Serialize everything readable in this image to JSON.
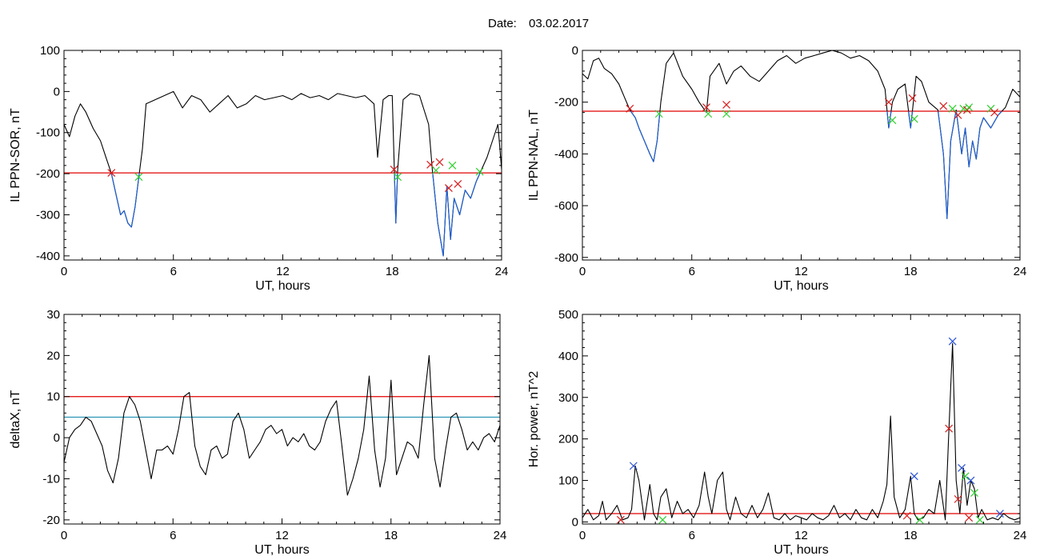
{
  "header": {
    "date_label": "Date:",
    "date_value": "03.02.2017"
  },
  "colors": {
    "line": "#000000",
    "highlight": "#1f5fd0",
    "threshold_red": "#e00000",
    "threshold_teal": "#1f8fb0",
    "cross_red": "#d81b1b",
    "cross_green": "#2fd02f",
    "cross_blue": "#2850d8"
  },
  "chart_data": [
    {
      "id": "sor",
      "type": "line",
      "title": "",
      "xlabel": "UT, hours",
      "ylabel": "IL PPN-SOR, nT",
      "xlim": [
        0,
        24
      ],
      "ylim": [
        -410,
        100
      ],
      "xticks": [
        0,
        6,
        12,
        18,
        24
      ],
      "yticks": [
        100,
        0,
        -100,
        -200,
        -300,
        -400
      ],
      "thresholds": [
        {
          "y": -198,
          "color": "red"
        }
      ],
      "series": [
        {
          "x": [
            0,
            0.3,
            0.6,
            0.9,
            1.2,
            1.6,
            2.0,
            2.3,
            2.6,
            2.9,
            3.1,
            3.3,
            3.5,
            3.7,
            3.9,
            4.1,
            4.3,
            4.5,
            5.0,
            5.5,
            6.0,
            6.5,
            7.0,
            7.5,
            8.0,
            8.5,
            9.0,
            9.5,
            10,
            10.5,
            11,
            11.5,
            12,
            12.5,
            13,
            13.5,
            14,
            14.5,
            15,
            15.5,
            16,
            16.5,
            17,
            17.2,
            17.5,
            17.8,
            18.0,
            18.2,
            18.3,
            18.6,
            19.0,
            19.5,
            20.0,
            20.2,
            20.5,
            20.8,
            21.0,
            21.2,
            21.4,
            21.7,
            22.0,
            22.3,
            22.6,
            22.9,
            23.2,
            23.5,
            23.8,
            24
          ],
          "y": [
            -80,
            -110,
            -60,
            -30,
            -50,
            -90,
            -120,
            -160,
            -200,
            -260,
            -300,
            -290,
            -320,
            -330,
            -280,
            -210,
            -140,
            -30,
            -20,
            -10,
            0,
            -40,
            -10,
            -20,
            -50,
            -30,
            -10,
            -40,
            -30,
            -10,
            -20,
            -15,
            -10,
            -20,
            -5,
            -15,
            -10,
            -20,
            -5,
            -10,
            -15,
            -10,
            -30,
            -160,
            -20,
            -10,
            -10,
            -320,
            -190,
            -20,
            -5,
            -10,
            -80,
            -190,
            -320,
            -400,
            -230,
            -360,
            -260,
            -300,
            -240,
            -260,
            -220,
            -190,
            -160,
            -120,
            -80,
            -190
          ],
          "highlight_below": -198
        }
      ],
      "markers": [
        {
          "x": 2.6,
          "y": -198,
          "color": "red"
        },
        {
          "x": 4.1,
          "y": -208,
          "color": "green"
        },
        {
          "x": 18.1,
          "y": -190,
          "color": "red"
        },
        {
          "x": 18.3,
          "y": -208,
          "color": "green"
        },
        {
          "x": 20.1,
          "y": -178,
          "color": "red"
        },
        {
          "x": 20.6,
          "y": -172,
          "color": "red"
        },
        {
          "x": 20.4,
          "y": -192,
          "color": "green"
        },
        {
          "x": 21.1,
          "y": -235,
          "color": "red"
        },
        {
          "x": 21.3,
          "y": -180,
          "color": "green"
        },
        {
          "x": 21.6,
          "y": -225,
          "color": "red"
        },
        {
          "x": 22.8,
          "y": -195,
          "color": "green"
        }
      ]
    },
    {
      "id": "nal",
      "type": "line",
      "title": "",
      "xlabel": "UT, hours",
      "ylabel": "IL PPN-NAL, nT",
      "xlim": [
        0,
        24
      ],
      "ylim": [
        -810,
        0
      ],
      "xticks": [
        0,
        6,
        12,
        18,
        24
      ],
      "yticks": [
        0,
        -200,
        -400,
        -600,
        -800
      ],
      "thresholds": [
        {
          "y": -235,
          "color": "red"
        }
      ],
      "series": [
        {
          "x": [
            0,
            0.3,
            0.6,
            0.9,
            1.2,
            1.6,
            2.0,
            2.3,
            2.6,
            2.9,
            3.1,
            3.4,
            3.7,
            3.9,
            4.1,
            4.3,
            4.6,
            5.0,
            5.5,
            6.0,
            6.4,
            6.8,
            7.0,
            7.5,
            7.9,
            8.3,
            8.7,
            9.2,
            9.7,
            10.2,
            10.7,
            11.2,
            11.7,
            12.2,
            12.7,
            13.2,
            13.7,
            14.2,
            14.7,
            15.2,
            15.7,
            16.2,
            16.6,
            16.8,
            17.0,
            17.3,
            17.7,
            18.0,
            18.3,
            18.6,
            19.0,
            19.5,
            19.8,
            20.0,
            20.2,
            20.5,
            20.8,
            21.0,
            21.2,
            21.4,
            21.6,
            21.8,
            22.0,
            22.4,
            22.8,
            23.2,
            23.6,
            24
          ],
          "y": [
            -90,
            -110,
            -40,
            -30,
            -70,
            -90,
            -130,
            -180,
            -230,
            -260,
            -300,
            -350,
            -400,
            -430,
            -350,
            -200,
            -50,
            -10,
            -100,
            -150,
            -200,
            -240,
            -100,
            -50,
            -130,
            -80,
            -60,
            -100,
            -120,
            -80,
            -40,
            -20,
            -50,
            -30,
            -20,
            -10,
            0,
            -10,
            -30,
            -20,
            -40,
            -80,
            -150,
            -300,
            -200,
            -150,
            -130,
            -300,
            -100,
            -120,
            -200,
            -230,
            -400,
            -650,
            -350,
            -230,
            -400,
            -300,
            -450,
            -350,
            -420,
            -300,
            -260,
            -300,
            -250,
            -220,
            -150,
            -180
          ],
          "highlight_below": -235
        }
      ],
      "markers": [
        {
          "x": 2.6,
          "y": -225,
          "color": "red"
        },
        {
          "x": 4.2,
          "y": -245,
          "color": "green"
        },
        {
          "x": 6.8,
          "y": -220,
          "color": "red"
        },
        {
          "x": 6.9,
          "y": -245,
          "color": "green"
        },
        {
          "x": 7.9,
          "y": -210,
          "color": "red"
        },
        {
          "x": 7.9,
          "y": -245,
          "color": "green"
        },
        {
          "x": 16.8,
          "y": -200,
          "color": "red"
        },
        {
          "x": 17.0,
          "y": -270,
          "color": "green"
        },
        {
          "x": 18.1,
          "y": -185,
          "color": "red"
        },
        {
          "x": 18.2,
          "y": -265,
          "color": "green"
        },
        {
          "x": 19.8,
          "y": -215,
          "color": "red"
        },
        {
          "x": 20.3,
          "y": -225,
          "color": "green"
        },
        {
          "x": 20.6,
          "y": -250,
          "color": "red"
        },
        {
          "x": 20.9,
          "y": -225,
          "color": "green"
        },
        {
          "x": 21.1,
          "y": -230,
          "color": "red"
        },
        {
          "x": 21.2,
          "y": -220,
          "color": "green"
        },
        {
          "x": 22.4,
          "y": -225,
          "color": "green"
        },
        {
          "x": 22.6,
          "y": -240,
          "color": "red"
        }
      ]
    },
    {
      "id": "deltax",
      "type": "line",
      "title": "",
      "xlabel": "UT, hours",
      "ylabel": "deltaX, nT",
      "xlim": [
        0,
        24
      ],
      "ylim": [
        -21,
        30
      ],
      "xticks": [
        0,
        6,
        12,
        18,
        24
      ],
      "yticks": [
        30,
        20,
        10,
        0,
        -10,
        -20
      ],
      "thresholds": [
        {
          "y": 10,
          "color": "red"
        },
        {
          "y": 5,
          "color": "teal"
        }
      ],
      "series": [
        {
          "x": [
            0,
            0.3,
            0.6,
            0.9,
            1.2,
            1.5,
            1.8,
            2.1,
            2.4,
            2.7,
            3.0,
            3.3,
            3.6,
            3.9,
            4.2,
            4.5,
            4.8,
            5.1,
            5.4,
            5.7,
            6.0,
            6.3,
            6.6,
            6.9,
            7.2,
            7.5,
            7.8,
            8.1,
            8.4,
            8.7,
            9.0,
            9.3,
            9.6,
            9.9,
            10.2,
            10.5,
            10.8,
            11.1,
            11.4,
            11.7,
            12.0,
            12.3,
            12.6,
            12.9,
            13.2,
            13.5,
            13.8,
            14.1,
            14.4,
            14.7,
            15.0,
            15.3,
            15.6,
            15.9,
            16.2,
            16.5,
            16.8,
            17.1,
            17.4,
            17.7,
            18.0,
            18.3,
            18.6,
            18.9,
            19.2,
            19.5,
            19.8,
            20.1,
            20.4,
            20.7,
            21.0,
            21.3,
            21.6,
            21.9,
            22.2,
            22.5,
            22.8,
            23.1,
            23.4,
            23.7,
            24
          ],
          "y": [
            -6,
            0,
            2,
            3,
            5,
            4,
            1,
            -2,
            -8,
            -11,
            -5,
            6,
            10,
            8,
            4,
            -3,
            -10,
            -3,
            -3,
            -2,
            -4,
            2,
            10,
            11,
            -2,
            -7,
            -9,
            -3,
            -2,
            -5,
            -4,
            4,
            6,
            2,
            -5,
            -3,
            -1,
            2,
            3,
            1,
            2,
            -2,
            0,
            -1,
            1,
            -2,
            -3,
            -1,
            4,
            7,
            9,
            -2,
            -14,
            -10,
            -5,
            2,
            15,
            -3,
            -12,
            -5,
            14,
            -9,
            -5,
            -1,
            -2,
            -5,
            8,
            20,
            -5,
            -12,
            -3,
            5,
            6,
            2,
            -3,
            -1,
            -3,
            0,
            1,
            -1,
            3
          ]
        }
      ],
      "markers": []
    },
    {
      "id": "power",
      "type": "line",
      "title": "",
      "xlabel": "UT, hours",
      "ylabel": "Hor. power, nT^2",
      "xlim": [
        0,
        24
      ],
      "ylim": [
        -5,
        500
      ],
      "xticks": [
        0,
        6,
        12,
        18,
        24
      ],
      "yticks": [
        500,
        400,
        300,
        200,
        100,
        0
      ],
      "thresholds": [
        {
          "y": 20,
          "color": "red"
        }
      ],
      "series": [
        {
          "x": [
            0,
            0.3,
            0.6,
            0.9,
            1.1,
            1.3,
            1.6,
            1.9,
            2.2,
            2.5,
            2.7,
            2.9,
            3.1,
            3.4,
            3.7,
            3.9,
            4.1,
            4.3,
            4.6,
            4.9,
            5.2,
            5.5,
            5.8,
            6.1,
            6.4,
            6.7,
            6.9,
            7.1,
            7.4,
            7.7,
            7.9,
            8.1,
            8.4,
            8.7,
            9.0,
            9.3,
            9.6,
            9.9,
            10.2,
            10.5,
            10.8,
            11.1,
            11.4,
            11.7,
            12.0,
            12.3,
            12.6,
            12.9,
            13.2,
            13.5,
            13.8,
            14.1,
            14.4,
            14.7,
            15.0,
            15.3,
            15.6,
            15.9,
            16.2,
            16.5,
            16.7,
            16.9,
            17.1,
            17.4,
            17.7,
            18.0,
            18.2,
            18.4,
            18.7,
            19.0,
            19.3,
            19.6,
            19.9,
            20.1,
            20.3,
            20.5,
            20.7,
            20.9,
            21.1,
            21.3,
            21.5,
            21.7,
            21.9,
            22.2,
            22.5,
            22.8,
            23.1,
            23.4,
            23.7,
            24
          ],
          "y": [
            10,
            30,
            5,
            15,
            50,
            5,
            20,
            40,
            5,
            10,
            30,
            135,
            100,
            5,
            90,
            20,
            5,
            60,
            80,
            10,
            50,
            20,
            30,
            10,
            40,
            120,
            60,
            20,
            100,
            120,
            30,
            5,
            60,
            20,
            10,
            40,
            10,
            30,
            70,
            10,
            5,
            20,
            5,
            15,
            10,
            5,
            20,
            10,
            5,
            15,
            40,
            10,
            20,
            5,
            30,
            10,
            5,
            30,
            10,
            50,
            90,
            255,
            60,
            10,
            30,
            110,
            20,
            5,
            10,
            30,
            20,
            100,
            5,
            220,
            430,
            100,
            20,
            130,
            40,
            100,
            80,
            10,
            30,
            5,
            10,
            5,
            20,
            10,
            5,
            10
          ]
        }
      ],
      "markers": [
        {
          "x": 2.1,
          "y": 5,
          "color": "red"
        },
        {
          "x": 2.8,
          "y": 135,
          "color": "blue"
        },
        {
          "x": 4.4,
          "y": 5,
          "color": "green"
        },
        {
          "x": 17.8,
          "y": 15,
          "color": "red"
        },
        {
          "x": 18.2,
          "y": 110,
          "color": "blue"
        },
        {
          "x": 18.5,
          "y": 5,
          "color": "green"
        },
        {
          "x": 20.1,
          "y": 225,
          "color": "red"
        },
        {
          "x": 20.3,
          "y": 435,
          "color": "blue"
        },
        {
          "x": 20.6,
          "y": 55,
          "color": "red"
        },
        {
          "x": 20.8,
          "y": 130,
          "color": "blue"
        },
        {
          "x": 21.0,
          "y": 110,
          "color": "green"
        },
        {
          "x": 21.2,
          "y": 10,
          "color": "red"
        },
        {
          "x": 21.3,
          "y": 100,
          "color": "blue"
        },
        {
          "x": 21.5,
          "y": 70,
          "color": "green"
        },
        {
          "x": 21.8,
          "y": 5,
          "color": "green"
        },
        {
          "x": 22.9,
          "y": 20,
          "color": "blue"
        }
      ]
    }
  ]
}
